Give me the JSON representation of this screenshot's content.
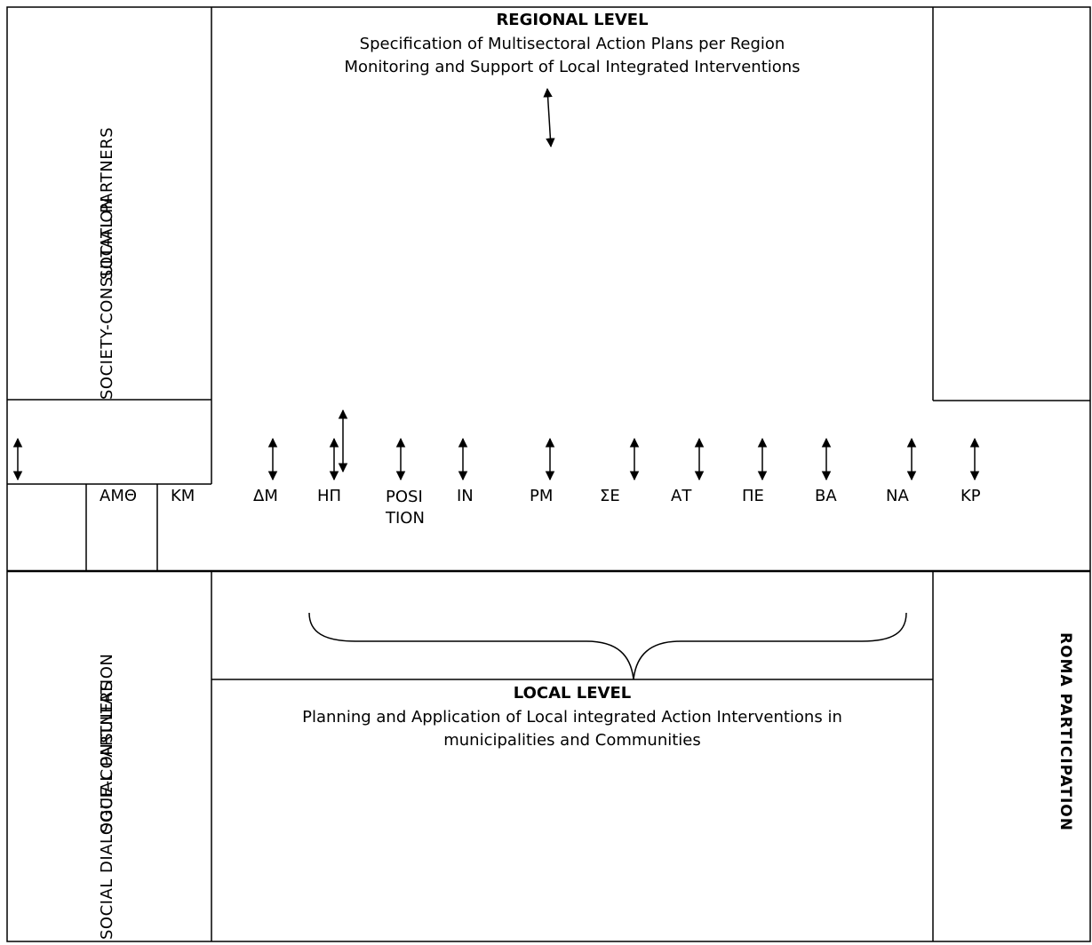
{
  "regional": {
    "title": "REGIONAL LEVEL",
    "line1": "Specification of Multisectoral Action Plans per Region",
    "line2": "Monitoring and Support of Local Integrated Interventions"
  },
  "local": {
    "title": "LOCAL  LEVEL",
    "line1": "Planning and Application of Local integrated Action Interventions in",
    "line2": "municipalities and Communities"
  },
  "side_labels": {
    "top_left_a": "SOCIETY-CONSULTATION",
    "top_left_b": "SOCIAL PARTNERS",
    "bottom_left_a": "SOCIAL DIALOGUE-CONSULTATION",
    "bottom_left_b": "SOCIAL PARTNERS",
    "right": "ROMA PARTICIPATION"
  },
  "regions": [
    "ΑΜΘ",
    "ΚΜ",
    "ΔΜ",
    "ΗΠ",
    "POSITION",
    "ΙΝ",
    "ΡΜ",
    "ΣΕ",
    "ΑΤ",
    "ΠΕ",
    "ΒΑ",
    "ΝΑ",
    "ΚΡ"
  ],
  "colors": {
    "line": "#000000",
    "background": "#ffffff"
  }
}
